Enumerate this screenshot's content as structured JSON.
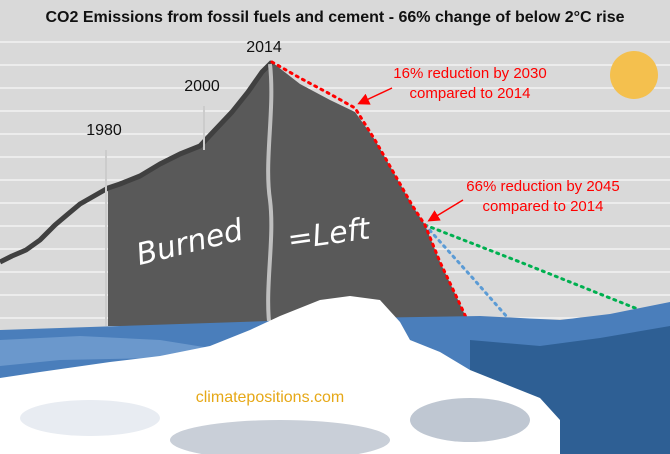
{
  "chart_data": {
    "type": "line",
    "title": "CO2 Emissions from fossil fuels and cement - 66% change of below 2°C rise",
    "year_labels": [
      "1980",
      "2000",
      "2014"
    ],
    "annotations": [
      {
        "text": [
          "16% reduction by 2030",
          "compared to 2014"
        ]
      },
      {
        "text": [
          "66% reduction by 2045",
          "compared to 2014"
        ]
      }
    ],
    "area_labels": [
      "Burned",
      "=Left"
    ],
    "credit": "climatepositions.com",
    "colors": {
      "background": "#d9d9d9",
      "gridline": "#ffffff",
      "mountain": "#595959",
      "history_line": "#404040",
      "reduction_path": "#ff0000",
      "path_blue": "#5b9bd5",
      "path_green": "#00b050",
      "sun": "#f4c04e",
      "water": "#4a7ebb",
      "snow": "#ffffff"
    }
  }
}
